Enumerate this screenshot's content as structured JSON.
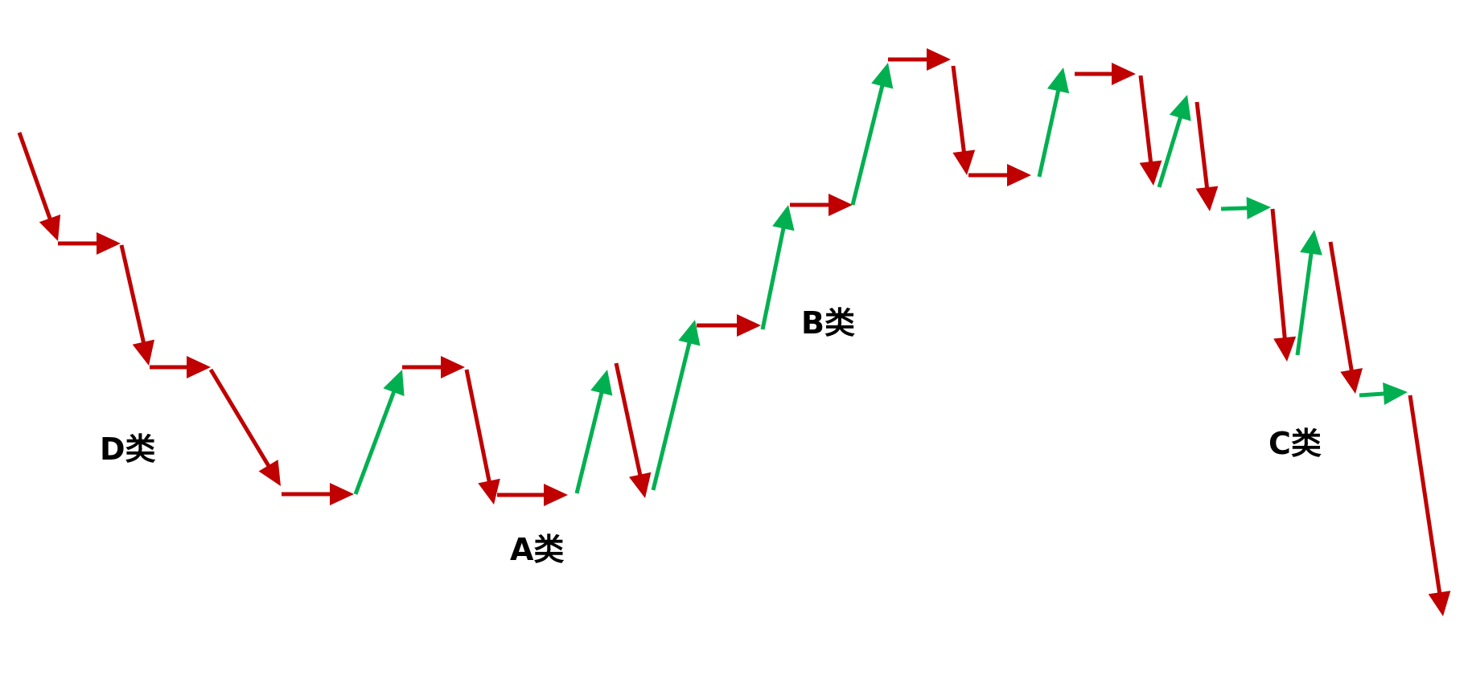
{
  "labels": {
    "d": "D类",
    "a": "A类",
    "b": "B类",
    "c": "C类"
  },
  "colors": {
    "down": "#C00000",
    "up": "#00B050",
    "flat": "#C00000",
    "flat_up": "#00B050",
    "text": "#000000"
  },
  "arrows": [
    {
      "dir": "down",
      "color": "down"
    },
    {
      "dir": "flat",
      "color": "flat"
    },
    {
      "dir": "down",
      "color": "down"
    },
    {
      "dir": "flat",
      "color": "flat"
    },
    {
      "dir": "down",
      "color": "down"
    },
    {
      "dir": "flat",
      "color": "flat"
    },
    {
      "dir": "up",
      "color": "up"
    },
    {
      "dir": "flat",
      "color": "flat"
    },
    {
      "dir": "down",
      "color": "down"
    },
    {
      "dir": "flat",
      "color": "flat"
    },
    {
      "dir": "up",
      "color": "up"
    },
    {
      "dir": "down",
      "color": "down"
    },
    {
      "dir": "up",
      "color": "up"
    },
    {
      "dir": "flat",
      "color": "flat"
    },
    {
      "dir": "up",
      "color": "up"
    },
    {
      "dir": "flat",
      "color": "flat"
    },
    {
      "dir": "up",
      "color": "up"
    },
    {
      "dir": "flat",
      "color": "flat"
    },
    {
      "dir": "down",
      "color": "down"
    },
    {
      "dir": "flat",
      "color": "flat"
    },
    {
      "dir": "up",
      "color": "up"
    },
    {
      "dir": "flat",
      "color": "flat"
    },
    {
      "dir": "down",
      "color": "down"
    },
    {
      "dir": "up",
      "color": "up"
    },
    {
      "dir": "down",
      "color": "down"
    },
    {
      "dir": "flat",
      "color": "flat_up"
    },
    {
      "dir": "down",
      "color": "down"
    },
    {
      "dir": "up",
      "color": "up"
    },
    {
      "dir": "down",
      "color": "down"
    },
    {
      "dir": "flat",
      "color": "flat_up"
    },
    {
      "dir": "down",
      "color": "down"
    }
  ]
}
